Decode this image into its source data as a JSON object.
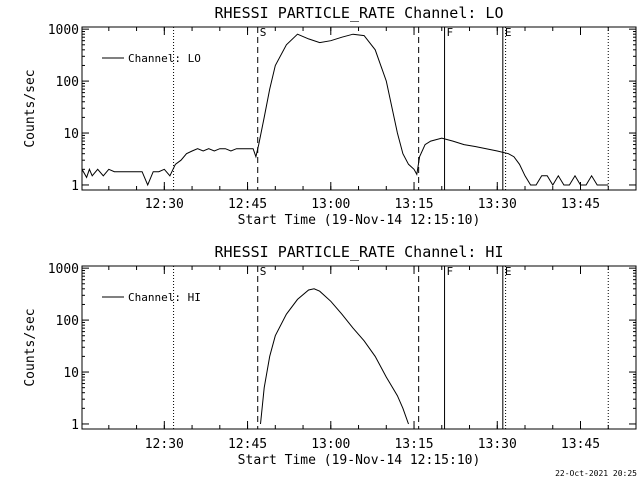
{
  "stamp": "22-Oct-2021 20:25",
  "chart_data": [
    {
      "type": "line",
      "title": "RHESSI PARTICLE_RATE Channel: LO",
      "xlabel": "Start Time (19-Nov-14 12:15:10)",
      "ylabel": "Counts/sec",
      "yscale": "log",
      "xlim": [
        "12:15:10",
        "13:55:00"
      ],
      "ylim": [
        0.8,
        1100
      ],
      "x_ticks": [
        "12:30",
        "12:45",
        "13:00",
        "13:15",
        "13:30",
        "13:45"
      ],
      "y_ticks": [
        "1",
        "10",
        "100",
        "1000"
      ],
      "legend": {
        "location": "top-left",
        "entries": [
          "Channel: LO"
        ]
      },
      "grid": false,
      "markers": [
        {
          "label": "S",
          "time": "12:46:50",
          "style": "dashed"
        },
        {
          "label": "",
          "time": "13:15:50",
          "style": "dashed"
        },
        {
          "label": "F",
          "time": "13:20:30",
          "style": "solid"
        },
        {
          "label": "E",
          "time": "13:31:00",
          "style": "solid"
        },
        {
          "label": "",
          "time": "12:31:40",
          "style": "dotted"
        },
        {
          "label": "",
          "time": "13:31:30",
          "style": "dotted"
        },
        {
          "label": "",
          "time": "13:50:00",
          "style": "dotted"
        }
      ],
      "series": [
        {
          "name": "Channel: LO",
          "x": [
            "12:15:10",
            "12:16:00",
            "12:16:30",
            "12:17:00",
            "12:18:00",
            "12:19:00",
            "12:20:00",
            "12:21:00",
            "12:22:00",
            "12:23:00",
            "12:24:00",
            "12:25:00",
            "12:26:00",
            "12:27:00",
            "12:28:00",
            "12:29:00",
            "12:30:00",
            "12:31:00",
            "12:32:00",
            "12:33:00",
            "12:34:00",
            "12:35:00",
            "12:36:00",
            "12:37:00",
            "12:38:00",
            "12:39:00",
            "12:40:00",
            "12:41:00",
            "12:42:00",
            "12:43:00",
            "12:44:00",
            "12:45:00",
            "12:46:00",
            "12:46:30",
            "12:47:00",
            "12:48:00",
            "12:49:00",
            "12:50:00",
            "12:52:00",
            "12:54:00",
            "12:56:00",
            "12:58:00",
            "13:00:00",
            "13:02:00",
            "13:04:00",
            "13:06:00",
            "13:08:00",
            "13:10:00",
            "13:12:00",
            "13:13:00",
            "13:14:00",
            "13:15:00",
            "13:15:30",
            "13:16:00",
            "13:17:00",
            "13:18:00",
            "13:20:00",
            "13:22:00",
            "13:24:00",
            "13:26:00",
            "13:28:00",
            "13:30:00",
            "13:32:00",
            "13:33:00",
            "13:34:00",
            "13:35:00",
            "13:36:00",
            "13:37:00",
            "13:38:00",
            "13:39:00",
            "13:40:00",
            "13:41:00",
            "13:42:00",
            "13:43:00",
            "13:44:00",
            "13:45:00",
            "13:46:00",
            "13:47:00",
            "13:48:00",
            "13:49:00",
            "13:50:00"
          ],
          "values": [
            2,
            1.4,
            2,
            1.5,
            2,
            1.5,
            2,
            1.8,
            1.8,
            1.8,
            1.8,
            1.8,
            1.8,
            1,
            1.8,
            1.8,
            2,
            1.5,
            2.5,
            3,
            4,
            4.5,
            5,
            4.5,
            5,
            4.5,
            5,
            5,
            4.5,
            5,
            5,
            5,
            5,
            3.5,
            6,
            20,
            70,
            200,
            500,
            800,
            650,
            550,
            600,
            700,
            800,
            750,
            400,
            100,
            10,
            4,
            2.5,
            2,
            1.6,
            3.5,
            6,
            7,
            8,
            7,
            6,
            5.5,
            5,
            4.5,
            4,
            3.5,
            2.5,
            1.5,
            1,
            1,
            1.5,
            1.5,
            1,
            1.5,
            1,
            1,
            1.5,
            1,
            1,
            1.5,
            1,
            1,
            1
          ]
        }
      ]
    },
    {
      "type": "line",
      "title": "RHESSI PARTICLE_RATE Channel: HI",
      "xlabel": "Start Time (19-Nov-14 12:15:10)",
      "ylabel": "Counts/sec",
      "yscale": "log",
      "xlim": [
        "12:15:10",
        "13:55:00"
      ],
      "ylim": [
        0.8,
        1100
      ],
      "x_ticks": [
        "12:30",
        "12:45",
        "13:00",
        "13:15",
        "13:30",
        "13:45"
      ],
      "y_ticks": [
        "1",
        "10",
        "100",
        "1000"
      ],
      "legend": {
        "location": "top-left",
        "entries": [
          "Channel: HI"
        ]
      },
      "grid": false,
      "markers": [
        {
          "label": "S",
          "time": "12:46:50",
          "style": "dashed"
        },
        {
          "label": "",
          "time": "13:15:50",
          "style": "dashed"
        },
        {
          "label": "F",
          "time": "13:20:30",
          "style": "solid"
        },
        {
          "label": "E",
          "time": "13:31:00",
          "style": "solid"
        },
        {
          "label": "",
          "time": "12:31:40",
          "style": "dotted"
        },
        {
          "label": "",
          "time": "13:31:30",
          "style": "dotted"
        },
        {
          "label": "",
          "time": "13:50:00",
          "style": "dotted"
        }
      ],
      "series": [
        {
          "name": "Channel: HI",
          "x": [
            "12:47:20",
            "12:48:00",
            "12:49:00",
            "12:50:00",
            "12:52:00",
            "12:54:00",
            "12:56:00",
            "12:57:00",
            "12:58:00",
            "13:00:00",
            "13:02:00",
            "13:04:00",
            "13:06:00",
            "13:08:00",
            "13:10:00",
            "13:12:00",
            "13:13:00",
            "13:14:00"
          ],
          "values": [
            1,
            5,
            20,
            50,
            130,
            250,
            380,
            400,
            360,
            230,
            130,
            70,
            40,
            20,
            8,
            3.5,
            2,
            1
          ]
        }
      ]
    }
  ]
}
